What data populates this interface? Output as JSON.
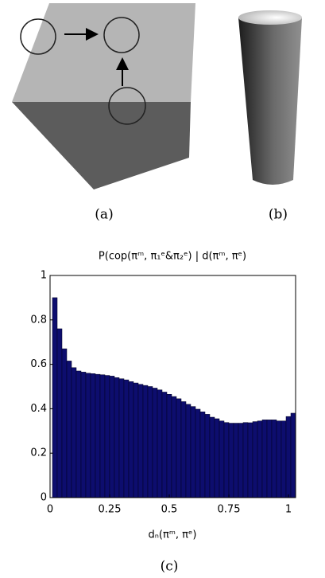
{
  "captions": [
    "(a)",
    "(b)",
    "(c)"
  ],
  "chart_data": {
    "type": "histogram",
    "title": "P(cop(πᵐ, π₁ᵉ&π₂ᵉ) | d(πᵐ, πᵉ)",
    "x_label": "dₙ(πᵐ, πᵉ)",
    "bins": [
      0.01,
      0.03,
      0.05,
      0.07,
      0.09,
      0.11,
      0.13,
      0.15,
      0.17,
      0.19,
      0.21,
      0.23,
      0.25,
      0.27,
      0.29,
      0.31,
      0.33,
      0.35,
      0.37,
      0.39,
      0.41,
      0.43,
      0.45,
      0.47,
      0.49,
      0.51,
      0.53,
      0.55,
      0.57,
      0.59,
      0.61,
      0.63,
      0.65,
      0.67,
      0.69,
      0.71,
      0.73,
      0.75,
      0.77,
      0.79,
      0.81,
      0.83,
      0.85,
      0.87,
      0.89,
      0.91,
      0.93,
      0.95,
      0.97,
      0.99,
      1.01,
      1.03
    ],
    "values": [
      0.9,
      0.76,
      0.67,
      0.615,
      0.585,
      0.57,
      0.565,
      0.56,
      0.558,
      0.555,
      0.553,
      0.55,
      0.547,
      0.54,
      0.535,
      0.53,
      0.522,
      0.516,
      0.51,
      0.505,
      0.5,
      0.493,
      0.485,
      0.475,
      0.465,
      0.455,
      0.445,
      0.432,
      0.42,
      0.41,
      0.398,
      0.386,
      0.375,
      0.362,
      0.355,
      0.345,
      0.338,
      0.335,
      0.335,
      0.335,
      0.338,
      0.337,
      0.342,
      0.345,
      0.35,
      0.35,
      0.35,
      0.345,
      0.345,
      0.365,
      0.38
    ],
    "color": "#0d0d6e",
    "xlim": [
      0,
      1.03
    ],
    "xticks": [
      0,
      0.25,
      0.5,
      0.75,
      1
    ],
    "ylim": [
      0,
      1
    ],
    "yticks": [
      0,
      0.2,
      0.4,
      0.6,
      0.8,
      1
    ]
  }
}
